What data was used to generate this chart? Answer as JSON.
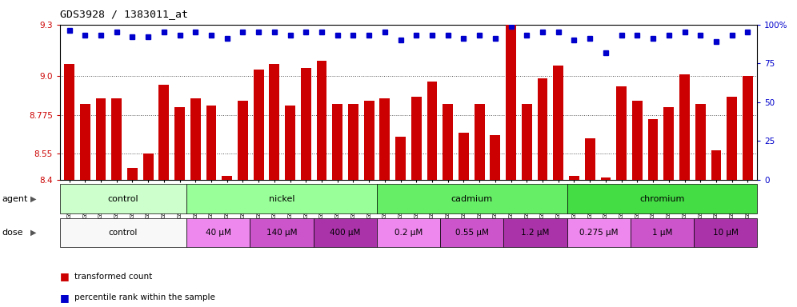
{
  "title": "GDS3928 / 1383011_at",
  "samples": [
    "GSM782280",
    "GSM782281",
    "GSM782291",
    "GSM782292",
    "GSM782302",
    "GSM782303",
    "GSM782313",
    "GSM782314",
    "GSM782282",
    "GSM782293",
    "GSM782304",
    "GSM782315",
    "GSM782283",
    "GSM782294",
    "GSM782305",
    "GSM782316",
    "GSM782284",
    "GSM782295",
    "GSM782306",
    "GSM782317",
    "GSM782288",
    "GSM782299",
    "GSM782310",
    "GSM782321",
    "GSM782289",
    "GSM782300",
    "GSM782311",
    "GSM782322",
    "GSM782290",
    "GSM782301",
    "GSM782312",
    "GSM782323",
    "GSM782285",
    "GSM782296",
    "GSM782307",
    "GSM782318",
    "GSM782286",
    "GSM782297",
    "GSM782308",
    "GSM782319",
    "GSM782287",
    "GSM782298",
    "GSM782309",
    "GSM782320"
  ],
  "transformed_count": [
    9.07,
    8.84,
    8.87,
    8.87,
    8.47,
    8.55,
    8.95,
    8.82,
    8.87,
    8.83,
    8.42,
    8.86,
    9.04,
    9.07,
    8.83,
    9.05,
    9.09,
    8.84,
    8.84,
    8.86,
    8.87,
    8.65,
    8.88,
    8.97,
    8.84,
    8.67,
    8.84,
    8.66,
    9.3,
    8.84,
    8.99,
    9.06,
    8.42,
    8.64,
    8.41,
    8.94,
    8.86,
    8.75,
    8.82,
    9.01,
    8.84,
    8.57,
    8.88,
    9.0
  ],
  "percentile_rank": [
    96,
    93,
    93,
    95,
    92,
    92,
    95,
    93,
    95,
    93,
    91,
    95,
    95,
    95,
    93,
    95,
    95,
    93,
    93,
    93,
    95,
    90,
    93,
    93,
    93,
    91,
    93,
    91,
    99,
    93,
    95,
    95,
    90,
    91,
    82,
    93,
    93,
    91,
    93,
    95,
    93,
    89,
    93,
    95
  ],
  "ylim_left": [
    8.4,
    9.3
  ],
  "ylim_right": [
    0,
    100
  ],
  "yticks_left": [
    8.4,
    8.55,
    8.775,
    9.0,
    9.3
  ],
  "yticks_right": [
    0,
    25,
    50,
    75,
    100
  ],
  "bar_color": "#cc0000",
  "dot_color": "#0000cc",
  "grid_color": "#555555",
  "agents": [
    {
      "label": "control",
      "start": 0,
      "end": 7,
      "color": "#ccffcc"
    },
    {
      "label": "nickel",
      "start": 8,
      "end": 19,
      "color": "#99ff99"
    },
    {
      "label": "cadmium",
      "start": 20,
      "end": 31,
      "color": "#66ee66"
    },
    {
      "label": "chromium",
      "start": 32,
      "end": 43,
      "color": "#44dd44"
    }
  ],
  "doses": [
    {
      "label": "control",
      "start": 0,
      "end": 7,
      "color": "#f8f8f8"
    },
    {
      "label": "40 μM",
      "start": 8,
      "end": 11,
      "color": "#ee88ee"
    },
    {
      "label": "140 μM",
      "start": 12,
      "end": 15,
      "color": "#cc55cc"
    },
    {
      "label": "400 μM",
      "start": 16,
      "end": 19,
      "color": "#aa33aa"
    },
    {
      "label": "0.2 μM",
      "start": 20,
      "end": 23,
      "color": "#ee88ee"
    },
    {
      "label": "0.55 μM",
      "start": 24,
      "end": 27,
      "color": "#cc55cc"
    },
    {
      "label": "1.2 μM",
      "start": 28,
      "end": 31,
      "color": "#aa33aa"
    },
    {
      "label": "0.275 μM",
      "start": 32,
      "end": 35,
      "color": "#ee88ee"
    },
    {
      "label": "1 μM",
      "start": 36,
      "end": 39,
      "color": "#cc55cc"
    },
    {
      "label": "10 μM",
      "start": 40,
      "end": 43,
      "color": "#aa33aa"
    }
  ],
  "legend_red_label": "transformed count",
  "legend_blue_label": "percentile rank within the sample",
  "agent_label": "agent",
  "dose_label": "dose"
}
